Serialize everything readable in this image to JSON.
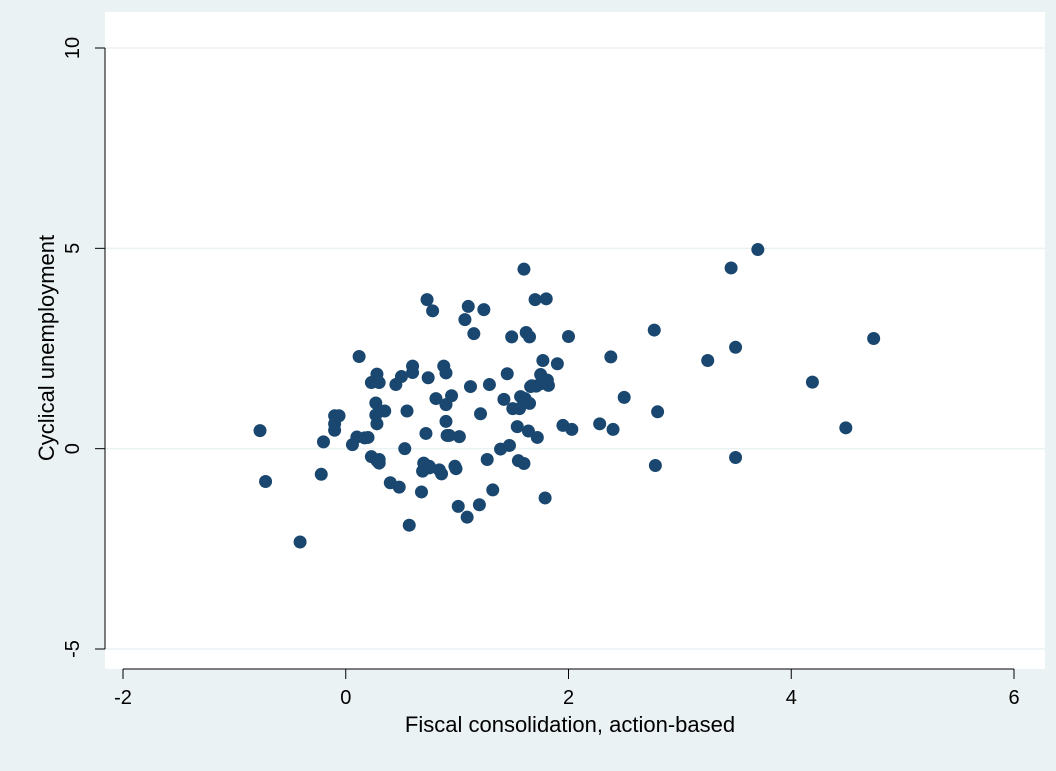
{
  "chart_data": {
    "type": "scatter",
    "xlabel": "Fiscal consolidation, action-based",
    "ylabel": "Cyclical unemployment",
    "xlim": [
      -2,
      6
    ],
    "ylim": [
      -5,
      10
    ],
    "xticks": [
      -2,
      0,
      2,
      4,
      6
    ],
    "yticks": [
      -5,
      0,
      5,
      10
    ],
    "xtick_labels": [
      "-2",
      "0",
      "2",
      "4",
      "6"
    ],
    "ytick_labels": [
      "-5",
      "0",
      "5",
      "10"
    ],
    "grid": "horizontal",
    "marker_color": "#1a476f",
    "background_color": "#eaf2f3",
    "plot_background_color": "#ffffff",
    "gridline_color": "#eaf2f3",
    "x": [
      -0.77,
      -0.72,
      -0.41,
      -0.22,
      -0.2,
      -0.1,
      -0.1,
      -0.1,
      -0.06,
      0.06,
      0.1,
      0.12,
      0.17,
      0.2,
      0.23,
      0.23,
      0.27,
      0.27,
      0.28,
      0.28,
      0.28,
      0.3,
      0.3,
      0.3,
      0.35,
      0.4,
      0.45,
      0.48,
      0.5,
      0.53,
      0.55,
      0.57,
      0.6,
      0.6,
      0.68,
      0.69,
      0.7,
      0.71,
      0.72,
      0.73,
      0.74,
      0.75,
      0.75,
      0.78,
      0.81,
      0.84,
      0.86,
      0.88,
      0.9,
      0.9,
      0.9,
      0.91,
      0.93,
      0.95,
      0.98,
      0.99,
      1.01,
      1.02,
      1.07,
      1.09,
      1.1,
      1.12,
      1.15,
      1.2,
      1.21,
      1.24,
      1.27,
      1.29,
      1.32,
      1.39,
      1.42,
      1.45,
      1.47,
      1.49,
      1.5,
      1.54,
      1.55,
      1.56,
      1.57,
      1.6,
      1.6,
      1.6,
      1.61,
      1.62,
      1.64,
      1.65,
      1.65,
      1.66,
      1.67,
      1.7,
      1.71,
      1.72,
      1.75,
      1.75,
      1.76,
      1.77,
      1.79,
      1.8,
      1.81,
      1.82,
      1.9,
      1.95,
      2.0,
      2.03,
      2.28,
      2.38,
      2.4,
      2.5,
      2.77,
      2.78,
      2.8,
      3.25,
      3.46,
      3.5,
      3.5,
      3.7,
      4.19,
      4.49,
      4.74
    ],
    "y": [
      0.45,
      -0.82,
      -2.33,
      -0.64,
      0.17,
      0.46,
      0.62,
      0.82,
      0.82,
      0.1,
      0.29,
      2.3,
      0.27,
      0.28,
      -0.2,
      1.65,
      0.84,
      1.14,
      1.86,
      0.62,
      -0.3,
      -0.27,
      -0.36,
      1.65,
      0.94,
      -0.85,
      1.6,
      -0.96,
      1.8,
      0.0,
      0.94,
      -1.91,
      2.06,
      1.9,
      -1.08,
      -0.56,
      -0.36,
      -0.48,
      0.38,
      3.72,
      1.77,
      -0.48,
      -0.44,
      3.44,
      1.25,
      -0.53,
      -0.63,
      2.06,
      1.89,
      0.68,
      1.1,
      0.33,
      0.33,
      1.32,
      -0.44,
      -0.5,
      -1.44,
      0.3,
      3.22,
      -1.71,
      3.55,
      1.55,
      2.87,
      -1.4,
      0.87,
      3.47,
      -0.27,
      1.6,
      -1.03,
      -0.01,
      1.23,
      1.87,
      0.08,
      2.79,
      1.0,
      0.55,
      -0.3,
      1.0,
      1.3,
      1.2,
      -0.37,
      4.48,
      1.25,
      2.9,
      0.44,
      1.13,
      2.79,
      1.55,
      1.57,
      3.72,
      1.56,
      0.28,
      1.85,
      1.62,
      1.66,
      2.2,
      -1.23,
      3.74,
      1.71,
      1.58,
      2.12,
      0.58,
      2.8,
      0.48,
      0.62,
      2.29,
      0.48,
      1.28,
      2.96,
      -0.42,
      0.92,
      2.2,
      4.51,
      2.53,
      -0.22,
      4.97,
      1.66,
      0.52,
      2.75
    ]
  }
}
